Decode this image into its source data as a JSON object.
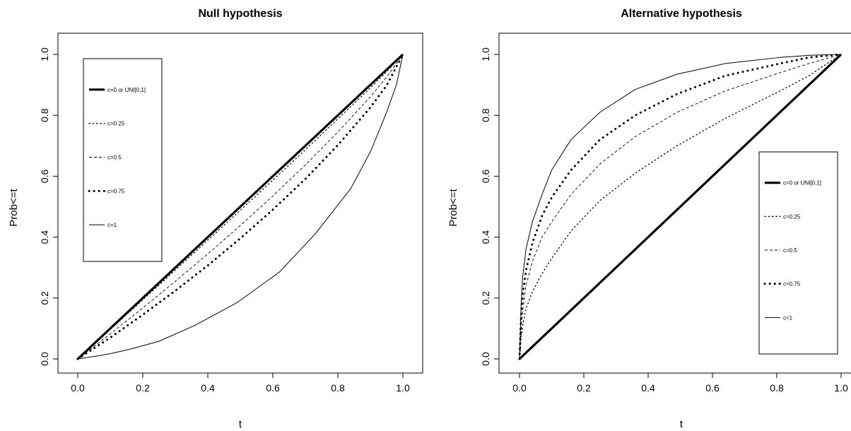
{
  "chart_data": [
    {
      "type": "line",
      "title": "Null hypothesis",
      "xlabel": "t",
      "ylabel": "Prob<=t",
      "xlim": [
        0,
        1
      ],
      "ylim": [
        0,
        1
      ],
      "xticks": [
        "0.0",
        "0.2",
        "0.4",
        "0.6",
        "0.8",
        "1.0"
      ],
      "yticks": [
        "0.0",
        "0.2",
        "0.4",
        "0.6",
        "0.8",
        "1.0"
      ],
      "grid": false,
      "legend_position": "top-left",
      "series": [
        {
          "name": "c=0 or UNI[0,1]",
          "style": "thick-solid",
          "x": [
            0,
            1
          ],
          "y": [
            0,
            1
          ]
        },
        {
          "name": "c=0.25",
          "style": "dotted",
          "x": [
            0,
            0.1,
            0.2,
            0.3,
            0.4,
            0.5,
            0.6,
            0.7,
            0.8,
            0.9,
            0.95,
            1.0
          ],
          "y": [
            0,
            0.097,
            0.194,
            0.292,
            0.39,
            0.488,
            0.587,
            0.687,
            0.788,
            0.89,
            0.943,
            1.0
          ]
        },
        {
          "name": "c=0.5",
          "style": "dashed",
          "x": [
            0,
            0.1,
            0.2,
            0.3,
            0.4,
            0.5,
            0.6,
            0.7,
            0.8,
            0.9,
            0.95,
            1.0
          ],
          "y": [
            0,
            0.082,
            0.167,
            0.255,
            0.345,
            0.438,
            0.535,
            0.637,
            0.745,
            0.861,
            0.925,
            1.0
          ]
        },
        {
          "name": "c=0.75",
          "style": "thick-dotted",
          "x": [
            0,
            0.1,
            0.2,
            0.3,
            0.4,
            0.5,
            0.6,
            0.7,
            0.8,
            0.9,
            0.95,
            1.0
          ],
          "y": [
            0,
            0.07,
            0.145,
            0.224,
            0.307,
            0.396,
            0.49,
            0.591,
            0.702,
            0.826,
            0.898,
            1.0
          ]
        },
        {
          "name": "c=1",
          "style": "solid",
          "x": [
            0,
            0.05,
            0.1,
            0.16,
            0.25,
            0.36,
            0.49,
            0.62,
            0.73,
            0.84,
            0.9,
            0.95,
            0.98,
            1.0
          ],
          "y": [
            0,
            0.008,
            0.017,
            0.032,
            0.058,
            0.11,
            0.185,
            0.285,
            0.41,
            0.56,
            0.68,
            0.81,
            0.9,
            1.0
          ]
        }
      ]
    },
    {
      "type": "line",
      "title": "Alternative hypothesis",
      "xlabel": "t",
      "ylabel": "Prob<=t",
      "xlim": [
        0,
        1
      ],
      "ylim": [
        0,
        1
      ],
      "xticks": [
        "0.0",
        "0.2",
        "0.4",
        "0.6",
        "0.8",
        "1.0"
      ],
      "yticks": [
        "0.0",
        "0.2",
        "0.4",
        "0.6",
        "0.8",
        "1.0"
      ],
      "grid": false,
      "legend_position": "right",
      "series": [
        {
          "name": "c=0 or UNI[0,1]",
          "style": "thick-solid",
          "x": [
            0,
            1
          ],
          "y": [
            0,
            1
          ]
        },
        {
          "name": "c=0.25",
          "style": "dotted",
          "x": [
            0,
            0.005,
            0.01,
            0.02,
            0.04,
            0.07,
            0.1,
            0.16,
            0.25,
            0.36,
            0.49,
            0.64,
            0.81,
            0.9,
            1.0
          ],
          "y": [
            0,
            0.07,
            0.11,
            0.165,
            0.22,
            0.28,
            0.33,
            0.42,
            0.52,
            0.61,
            0.7,
            0.79,
            0.88,
            0.93,
            1.0
          ]
        },
        {
          "name": "c=0.5",
          "style": "dashed",
          "x": [
            0,
            0.005,
            0.01,
            0.02,
            0.04,
            0.07,
            0.1,
            0.16,
            0.25,
            0.36,
            0.49,
            0.64,
            0.81,
            0.9,
            1.0
          ],
          "y": [
            0,
            0.1,
            0.16,
            0.24,
            0.32,
            0.4,
            0.45,
            0.54,
            0.64,
            0.73,
            0.81,
            0.88,
            0.94,
            0.97,
            1.0
          ]
        },
        {
          "name": "c=0.75",
          "style": "thick-dotted",
          "x": [
            0,
            0.005,
            0.01,
            0.02,
            0.04,
            0.07,
            0.1,
            0.16,
            0.25,
            0.36,
            0.49,
            0.64,
            0.81,
            0.9,
            1.0
          ],
          "y": [
            0,
            0.14,
            0.21,
            0.29,
            0.38,
            0.47,
            0.53,
            0.62,
            0.72,
            0.8,
            0.87,
            0.93,
            0.97,
            0.99,
            1.0
          ]
        },
        {
          "name": "c=1",
          "style": "solid",
          "x": [
            0,
            0.005,
            0.01,
            0.02,
            0.04,
            0.07,
            0.1,
            0.16,
            0.25,
            0.36,
            0.49,
            0.64,
            0.81,
            0.9,
            1.0
          ],
          "y": [
            0,
            0.18,
            0.27,
            0.36,
            0.45,
            0.54,
            0.62,
            0.72,
            0.81,
            0.885,
            0.935,
            0.97,
            0.99,
            0.997,
            1.0
          ]
        }
      ]
    }
  ]
}
